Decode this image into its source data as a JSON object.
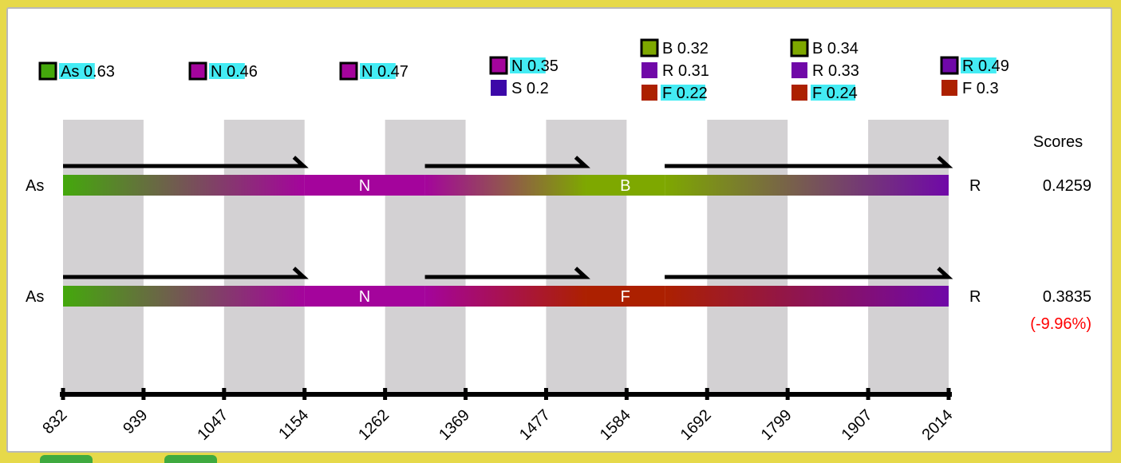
{
  "axis": {
    "ticks": [
      "832",
      "939",
      "1047",
      "1154",
      "1262",
      "1369",
      "1477",
      "1584",
      "1692",
      "1799",
      "1907",
      "2014"
    ]
  },
  "scores_header": "Scores",
  "colors": {
    "As": "#44a80c",
    "N": "#a4049c",
    "B": "#7ea800",
    "R": "#7008a8",
    "S": "#3c08a8",
    "F": "#ac2000",
    "highlight": "#44ecf4",
    "band": "#d3d1d3",
    "pct_negative": "#ff0000"
  },
  "legend": [
    {
      "slot": 0,
      "items": [
        {
          "code": "As",
          "value": "0.63",
          "label": "As 0.63",
          "boxed": true,
          "hl": "As 0"
        }
      ]
    },
    {
      "slot": 1,
      "items": [
        {
          "code": "N",
          "value": "0.46",
          "label": "N 0.46",
          "boxed": true,
          "hl": "N 0."
        }
      ]
    },
    {
      "slot": 2,
      "items": [
        {
          "code": "N",
          "value": "0.47",
          "label": "N 0.47",
          "boxed": true,
          "hl": "N 0."
        }
      ]
    },
    {
      "slot": 3,
      "items": [
        {
          "code": "N",
          "value": "0.35",
          "label": "N 0.35",
          "boxed": true,
          "hl": "N 0."
        },
        {
          "code": "S",
          "value": "0.2",
          "label": "S 0.2",
          "boxed": false,
          "hl": ""
        }
      ]
    },
    {
      "slot": 4,
      "items": [
        {
          "code": "B",
          "value": "0.32",
          "label": "B 0.32",
          "boxed": true,
          "hl": ""
        },
        {
          "code": "R",
          "value": "0.31",
          "label": "R 0.31",
          "boxed": false,
          "hl": ""
        },
        {
          "code": "F",
          "value": "0.22",
          "label": "F 0.22",
          "boxed": false,
          "hl": "F 0.2"
        }
      ]
    },
    {
      "slot": 5,
      "items": [
        {
          "code": "B",
          "value": "0.34",
          "label": "B 0.34",
          "boxed": true,
          "hl": ""
        },
        {
          "code": "R",
          "value": "0.33",
          "label": "R 0.33",
          "boxed": false,
          "hl": ""
        },
        {
          "code": "F",
          "value": "0.24",
          "label": "F 0.24",
          "boxed": false,
          "hl": "F 0.2"
        }
      ]
    },
    {
      "slot": 6,
      "items": [
        {
          "code": "R",
          "value": "0.49",
          "label": "R 0.49",
          "boxed": true,
          "hl": "R 0."
        },
        {
          "code": "F",
          "value": "0.3",
          "label": "F 0.3",
          "boxed": false,
          "hl": ""
        }
      ]
    }
  ],
  "rows": [
    {
      "left_label": "As",
      "right_label": "R",
      "score": "0.4259",
      "pct": "",
      "segments": [
        {
          "start": 832,
          "end": 1154,
          "from": "As",
          "to": "N"
        },
        {
          "start": 1154,
          "end": 1315,
          "from": "N",
          "to": "N",
          "label": "N"
        },
        {
          "start": 1315,
          "end": 1530,
          "from": "N",
          "to": "B"
        },
        {
          "start": 1530,
          "end": 1635,
          "from": "B",
          "to": "B",
          "label": "B"
        },
        {
          "start": 1635,
          "end": 2014,
          "from": "B",
          "to": "R"
        }
      ],
      "arrows": [
        {
          "start": 832,
          "end": 1154
        },
        {
          "start": 1315,
          "end": 1530
        },
        {
          "start": 1635,
          "end": 2014
        }
      ]
    },
    {
      "left_label": "As",
      "right_label": "R",
      "score": "0.3835",
      "pct": "(-9.96%)",
      "segments": [
        {
          "start": 832,
          "end": 1154,
          "from": "As",
          "to": "N"
        },
        {
          "start": 1154,
          "end": 1315,
          "from": "N",
          "to": "N",
          "label": "N"
        },
        {
          "start": 1315,
          "end": 1530,
          "from": "N",
          "to": "F"
        },
        {
          "start": 1530,
          "end": 1635,
          "from": "F",
          "to": "F",
          "label": "F"
        },
        {
          "start": 1635,
          "end": 2014,
          "from": "F",
          "to": "R"
        }
      ],
      "arrows": [
        {
          "start": 832,
          "end": 1154
        },
        {
          "start": 1315,
          "end": 1530
        },
        {
          "start": 1635,
          "end": 2014
        }
      ]
    }
  ]
}
